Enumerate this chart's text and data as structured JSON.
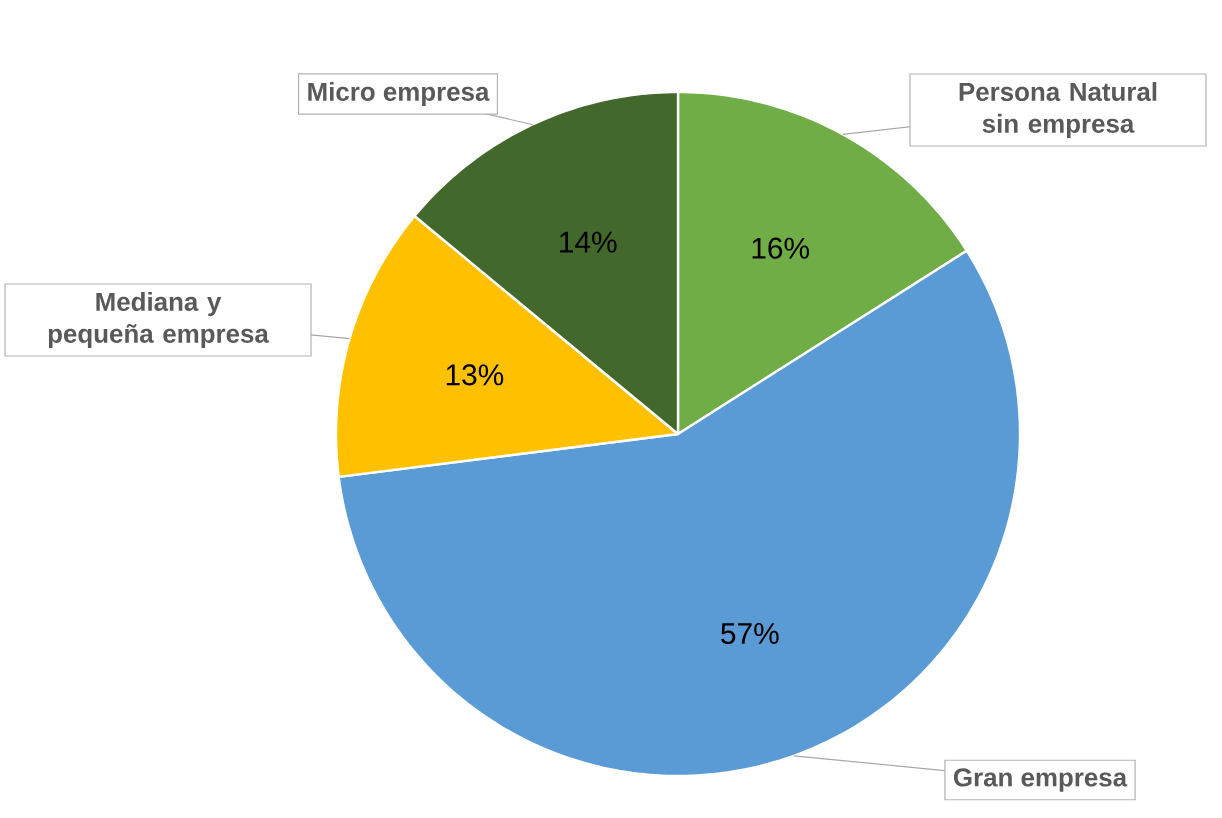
{
  "chart_data": {
    "type": "pie",
    "categories": [
      "Persona Natural sin empresa",
      "Gran empresa",
      "Mediana y pequeña empresa",
      "Micro empresa"
    ],
    "values": [
      16,
      57,
      13,
      14
    ],
    "colors": [
      "#70ad47",
      "#5b9bd5",
      "#ffc000",
      "#43682b"
    ],
    "value_labels": [
      "16%",
      "57%",
      "13%",
      "14%"
    ]
  }
}
